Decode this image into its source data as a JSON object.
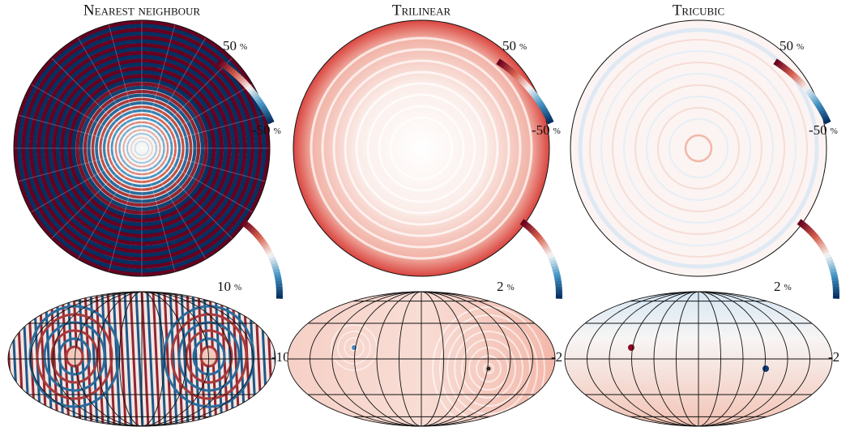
{
  "columns": [
    {
      "title": "Nearest neighbour",
      "top": {
        "max": "50",
        "max_unit": "%",
        "min": "-50",
        "min_unit": "%"
      },
      "bottom": {
        "max": "10",
        "max_unit": "%",
        "min": "-10"
      }
    },
    {
      "title": "Trilinear",
      "top": {
        "max": "50",
        "max_unit": "%",
        "min": "-50",
        "min_unit": "%"
      },
      "bottom": {
        "max": "2",
        "max_unit": "%",
        "min": "-2"
      }
    },
    {
      "title": "Tricubic",
      "top": {
        "max": "50",
        "max_unit": "%",
        "min": "-50",
        "min_unit": "%"
      },
      "bottom": {
        "max": "2",
        "max_unit": "%",
        "min": "-2"
      }
    }
  ]
}
